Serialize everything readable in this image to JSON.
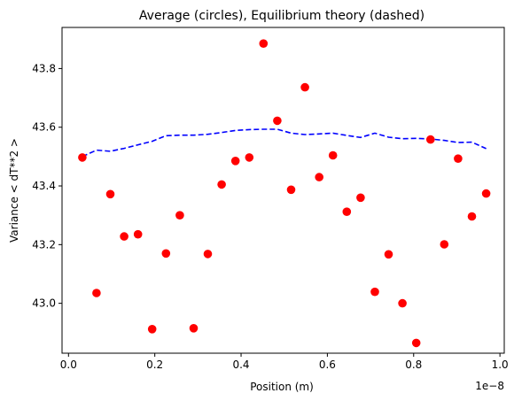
{
  "chart_data": {
    "type": "scatter",
    "title": "Average (circles), Equilibrium theory (dashed)",
    "xlabel": "Position (m)",
    "ylabel": "Variance < dT**2 >",
    "x_offset_label": "1e−8",
    "xlim": [
      -0.015,
      1.01
    ],
    "ylim": [
      42.83,
      43.94
    ],
    "xticks": [
      0.0,
      0.2,
      0.4,
      0.6,
      0.8,
      1.0
    ],
    "xtick_labels": [
      "0.0",
      "0.2",
      "0.4",
      "0.6",
      "0.8",
      "1.0"
    ],
    "yticks": [
      43.0,
      43.2,
      43.4,
      43.6,
      43.8
    ],
    "ytick_labels": [
      "43.0",
      "43.2",
      "43.4",
      "43.6",
      "43.8"
    ],
    "grid": false,
    "series": [
      {
        "kind": "scatter",
        "color": "#ff0000",
        "x": [
          0.032,
          0.065,
          0.097,
          0.129,
          0.161,
          0.194,
          0.226,
          0.258,
          0.29,
          0.323,
          0.355,
          0.387,
          0.419,
          0.452,
          0.484,
          0.516,
          0.548,
          0.581,
          0.613,
          0.645,
          0.677,
          0.71,
          0.742,
          0.774,
          0.806,
          0.839,
          0.871,
          0.903,
          0.935,
          0.968
        ],
        "y": [
          43.497,
          43.035,
          43.372,
          43.228,
          43.235,
          42.912,
          43.17,
          43.3,
          42.915,
          43.168,
          43.405,
          43.485,
          43.497,
          43.885,
          43.622,
          43.387,
          43.736,
          43.43,
          43.504,
          43.312,
          43.36,
          43.039,
          43.167,
          43.0,
          42.865,
          43.558,
          43.201,
          43.493,
          43.296,
          43.374
        ]
      },
      {
        "kind": "line",
        "style": "dashed",
        "color": "#0000ff",
        "x": [
          0.032,
          0.065,
          0.097,
          0.129,
          0.161,
          0.194,
          0.226,
          0.258,
          0.29,
          0.323,
          0.355,
          0.387,
          0.419,
          0.452,
          0.484,
          0.516,
          0.548,
          0.581,
          0.613,
          0.645,
          0.677,
          0.71,
          0.742,
          0.774,
          0.806,
          0.839,
          0.871,
          0.903,
          0.935,
          0.968
        ],
        "y": [
          43.5,
          43.522,
          43.518,
          43.528,
          43.54,
          43.552,
          43.571,
          43.573,
          43.573,
          43.576,
          43.582,
          43.589,
          43.592,
          43.593,
          43.593,
          43.58,
          43.575,
          43.577,
          43.58,
          43.572,
          43.565,
          43.58,
          43.566,
          43.561,
          43.562,
          43.56,
          43.555,
          43.548,
          43.549,
          43.527
        ]
      }
    ]
  }
}
